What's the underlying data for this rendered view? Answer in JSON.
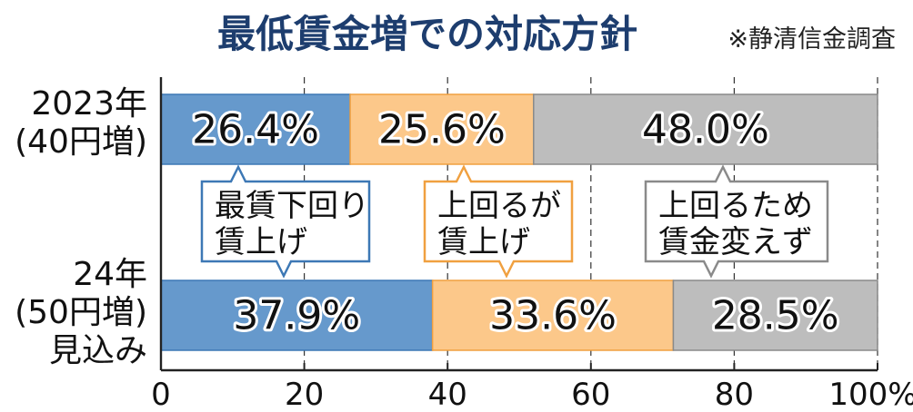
{
  "title": "最低賃金増での対応方針",
  "source": "※静清信金調査",
  "colors": {
    "blue": "#6699cc",
    "blue_border": "#3d78b5",
    "orange": "#fcc88a",
    "orange_border": "#f0a040",
    "gray": "#bdbdbd",
    "gray_border": "#8a8a8a",
    "title": "#1d3d6e"
  },
  "chart_data": {
    "type": "bar",
    "orientation": "horizontal-stacked",
    "title": "最低賃金増での対応方針",
    "categories": [
      [
        "2023年",
        "(40円増)"
      ],
      [
        "24年",
        "(50円増)",
        "見込み"
      ]
    ],
    "series": [
      {
        "name": [
          "最賃下回り",
          "賃上げ"
        ],
        "values": [
          26.4,
          37.9
        ],
        "labels": [
          "26.4%",
          "37.9%"
        ],
        "color": "blue"
      },
      {
        "name": [
          "上回るが",
          "賃上げ"
        ],
        "values": [
          25.6,
          33.6
        ],
        "labels": [
          "25.6%",
          "33.6%"
        ],
        "color": "orange"
      },
      {
        "name": [
          "上回るため",
          "賃金変えず"
        ],
        "values": [
          48.0,
          28.5
        ],
        "labels": [
          "48.0%",
          "28.5%"
        ],
        "color": "gray"
      }
    ],
    "xlim": [
      0,
      100
    ],
    "xticks": [
      0,
      20,
      40,
      60,
      80,
      100
    ],
    "xticklabels": [
      "0",
      "20",
      "40",
      "60",
      "80",
      "100%"
    ],
    "grid": "vertical-dashed",
    "legend": "callouts between bars"
  }
}
